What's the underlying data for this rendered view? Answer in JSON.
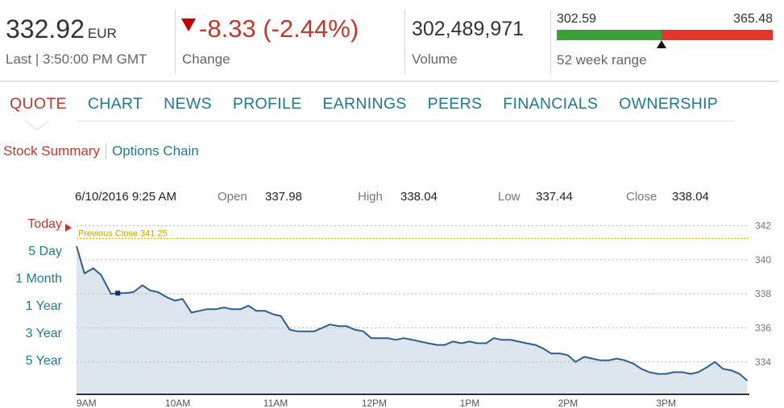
{
  "quote": {
    "price": "332.92",
    "currency": "EUR",
    "last_label": "Last | 3:50:00 PM GMT",
    "change": "-8.33 (-2.44%)",
    "change_label": "Change",
    "volume": "302,489,971",
    "volume_label": "Volume",
    "range_low": "302.59",
    "range_high": "365.48",
    "range_label": "52 week range",
    "range_position": 0.486,
    "colors": {
      "down": "#c0392b",
      "up_bar": "#3aa03a",
      "down_bar": "#e0392b",
      "link": "#1f7a8c"
    }
  },
  "nav": {
    "tabs": [
      "QUOTE",
      "CHART",
      "NEWS",
      "PROFILE",
      "EARNINGS",
      "PEERS",
      "FINANCIALS",
      "OWNERSHIP"
    ],
    "active": "QUOTE"
  },
  "subnav": {
    "summary": "Stock Summary",
    "options": "Options Chain"
  },
  "info": {
    "datetime": "6/10/2016 9:25 AM",
    "open_label": "Open",
    "open": "337.98",
    "high_label": "High",
    "high": "338.04",
    "low_label": "Low",
    "low": "337.44",
    "close_label": "Close",
    "close": "338.04"
  },
  "ranges": [
    "Today",
    "5 Day",
    "1 Month",
    "1 Year",
    "3 Year",
    "5 Year"
  ],
  "chart_data": {
    "type": "area",
    "x_ticks": [
      "9AM",
      "10AM",
      "11AM",
      "12PM",
      "1PM",
      "2PM",
      "3PM"
    ],
    "y_ticks": [
      342,
      340,
      338,
      336,
      334
    ],
    "ylim": [
      332.1,
      342.4
    ],
    "xlim_hours": [
      9.0,
      15.85
    ],
    "grid": true,
    "reference_line": {
      "label": "Previous Close 341.25",
      "value": 341.25,
      "color": "#d9b800"
    },
    "highlight_point": {
      "x": 9.42,
      "y": 338.04
    },
    "line_color": "#2e5f8a",
    "fill_color": "#dde6ee",
    "series": [
      {
        "x": [
          9.0,
          9.08,
          9.17,
          9.25,
          9.35,
          9.42,
          9.5,
          9.58,
          9.67,
          9.75,
          9.83,
          9.92,
          10.0,
          10.08,
          10.17,
          10.25,
          10.33,
          10.42,
          10.5,
          10.58,
          10.67,
          10.75,
          10.83,
          10.92,
          11.0,
          11.08,
          11.17,
          11.25,
          11.33,
          11.42,
          11.5,
          11.58,
          11.67,
          11.75,
          11.83,
          11.92,
          12.0,
          12.08,
          12.17,
          12.25,
          12.33,
          12.42,
          12.5,
          12.58,
          12.67,
          12.75,
          12.83,
          12.92,
          13.0,
          13.08,
          13.17,
          13.25,
          13.33,
          13.42,
          13.5,
          13.58,
          13.67,
          13.75,
          13.83,
          13.92,
          14.0,
          14.08,
          14.17,
          14.25,
          14.33,
          14.42,
          14.5,
          14.58,
          14.67,
          14.75,
          14.83,
          14.92,
          15.0,
          15.08,
          15.17,
          15.25,
          15.33,
          15.42,
          15.5,
          15.58,
          15.67,
          15.75,
          15.83
        ],
        "y": [
          340.8,
          339.2,
          339.5,
          339.1,
          338.0,
          338.04,
          338.05,
          338.1,
          338.5,
          338.2,
          338.1,
          337.8,
          337.6,
          337.7,
          336.9,
          337.0,
          337.1,
          337.1,
          337.2,
          337.1,
          337.1,
          337.3,
          337.0,
          337.0,
          336.8,
          336.7,
          335.9,
          335.8,
          335.8,
          335.8,
          336.0,
          336.2,
          336.1,
          336.1,
          335.9,
          335.8,
          335.4,
          335.4,
          335.4,
          335.3,
          335.4,
          335.3,
          335.2,
          335.1,
          335.0,
          335.0,
          335.2,
          335.1,
          335.2,
          335.1,
          335.1,
          335.4,
          335.3,
          335.3,
          335.2,
          335.1,
          335.0,
          334.8,
          334.5,
          334.5,
          334.4,
          334.0,
          334.3,
          334.2,
          334.1,
          334.1,
          334.2,
          334.1,
          333.9,
          333.6,
          333.4,
          333.3,
          333.3,
          333.4,
          333.4,
          333.3,
          333.4,
          333.7,
          334.0,
          333.6,
          333.5,
          333.3,
          332.9
        ]
      }
    ]
  }
}
